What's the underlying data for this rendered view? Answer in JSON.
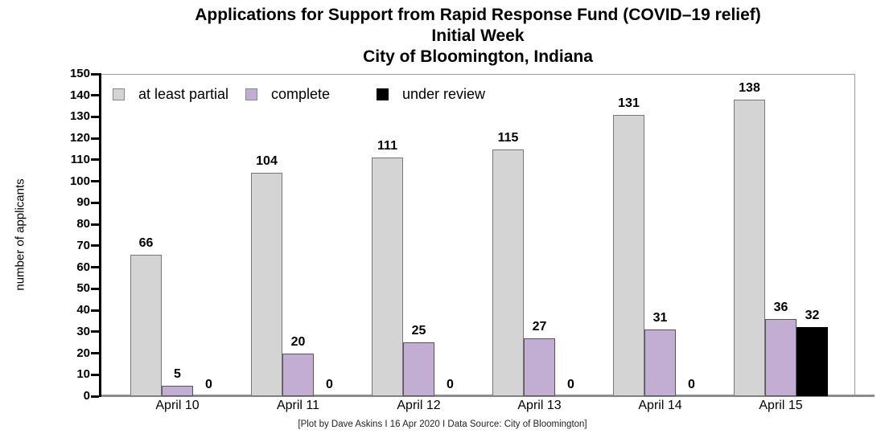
{
  "title": {
    "line1": "Applications for Support from Rapid Response Fund (COVID–19 relief)",
    "line2": "Initial Week",
    "line3": "City of Bloomington, Indiana"
  },
  "footer": {
    "text": "[Plot by Dave Askins I 16 Apr 2020 I Data Source: City of Bloomington]"
  },
  "colors": {
    "at_least_partial": "#d4d4d4",
    "complete": "#c3aed3",
    "under_review": "#000000",
    "bar_border_gray": "#777777",
    "bar_border_dark": "#555555",
    "axis": "#000000",
    "frame": "#999999",
    "baseline": "#8c8c8c"
  },
  "chart_data": {
    "type": "bar",
    "title": "Applications for Support from Rapid Response Fund (COVID–19 relief) Initial Week City of Bloomington, Indiana",
    "categories": [
      "April 10",
      "April 11",
      "April 12",
      "April 13",
      "April 14",
      "April 15"
    ],
    "series": [
      {
        "name": "at least partial",
        "color": "#d4d4d4",
        "border": "#777777",
        "values": [
          66,
          104,
          111,
          115,
          131,
          138
        ]
      },
      {
        "name": "complete",
        "color": "#c3aed3",
        "border": "#555555",
        "values": [
          5,
          20,
          25,
          27,
          31,
          36
        ]
      },
      {
        "name": "under review",
        "color": "#000000",
        "border": "#000000",
        "values": [
          0,
          0,
          0,
          0,
          0,
          32
        ]
      }
    ],
    "xlabel": "",
    "ylabel": "number of applicants",
    "ylim": [
      0,
      150
    ],
    "ytick_step": 10,
    "value_labels": true,
    "grid": false,
    "legend_position": "top-left-inside"
  }
}
